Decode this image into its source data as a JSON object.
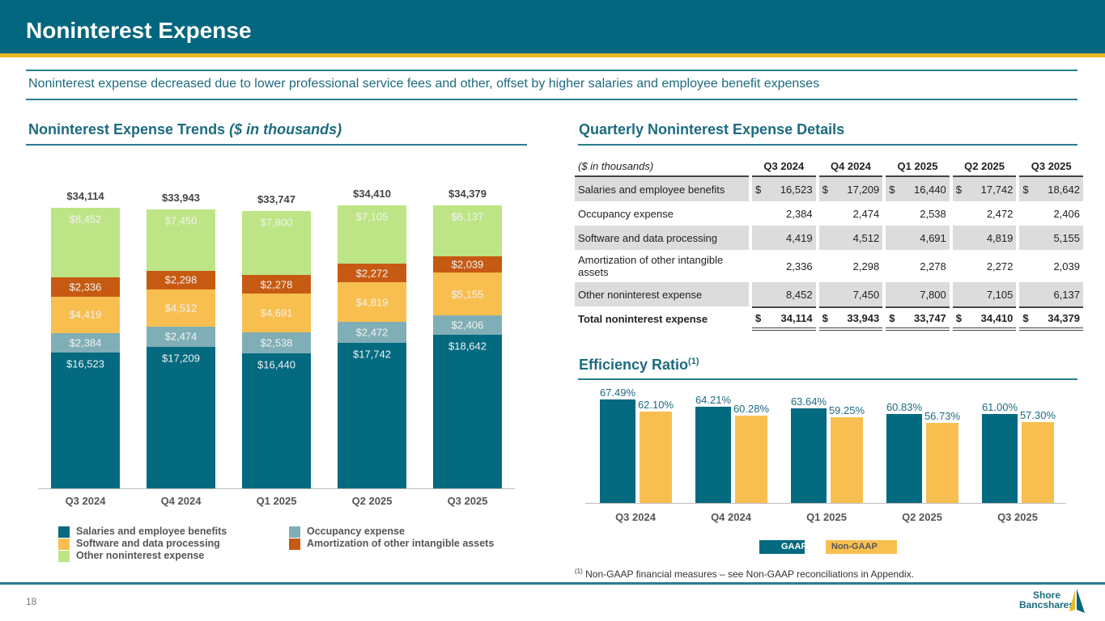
{
  "title": "Noninterest Expense",
  "subtitle": "Noninterest expense decreased due to lower professional service fees and other, offset by higher salaries and employee benefit expenses",
  "left_heading": "Noninterest Expense Trends",
  "left_heading_unit": "($ in thousands)",
  "right_heading": "Quarterly Noninterest Expense Details",
  "efficiency_heading": "Efficiency Ratio",
  "efficiency_sup": "(1)",
  "footnote_sup": "(1)",
  "footnote": "Non-GAAP financial measures – see Non-GAAP reconciliations in Appendix.",
  "page_number": "18",
  "logo_text": "Shore Bancshares",
  "colors": {
    "header": "#02667e",
    "stripe": "#e9b824",
    "salaries": "#046a80",
    "occupancy": "#80aeb6",
    "software": "#f8bf50",
    "amortization": "#c75a12",
    "other": "#bde585",
    "gaap": "#046a80",
    "nongaap": "#f8bf50"
  },
  "table": {
    "unit_label": "($ in thousands)",
    "columns": [
      "Q3 2024",
      "Q4 2024",
      "Q1 2025",
      "Q2 2025",
      "Q3 2025"
    ],
    "rows": [
      {
        "label": "Salaries and employee benefits",
        "values": [
          "16,523",
          "17,209",
          "16,440",
          "17,742",
          "18,642"
        ],
        "dollar": true
      },
      {
        "label": "Occupancy expense",
        "values": [
          "2,384",
          "2,474",
          "2,538",
          "2,472",
          "2,406"
        ]
      },
      {
        "label": "Software and data processing",
        "values": [
          "4,419",
          "4,512",
          "4,691",
          "4,819",
          "5,155"
        ]
      },
      {
        "label": "Amortization of other intangible assets",
        "values": [
          "2,336",
          "2,298",
          "2,278",
          "2,272",
          "2,039"
        ]
      },
      {
        "label": "Other noninterest expense",
        "values": [
          "8,452",
          "7,450",
          "7,800",
          "7,105",
          "6,137"
        ]
      }
    ],
    "total": {
      "label": "Total noninterest expense",
      "values": [
        "34,114",
        "33,943",
        "33,747",
        "34,410",
        "34,379"
      ]
    },
    "currency": "$"
  },
  "chart_data": [
    {
      "type": "bar",
      "stacked": true,
      "title": "Noninterest Expense Trends ($ in thousands)",
      "categories": [
        "Q3 2024",
        "Q4 2024",
        "Q1 2025",
        "Q2 2025",
        "Q3 2025"
      ],
      "series": [
        {
          "name": "Salaries and employee benefits",
          "key": "salaries",
          "values": [
            16523,
            17209,
            16440,
            17742,
            18642
          ],
          "labels": [
            "$16,523",
            "$17,209",
            "$16,440",
            "$17,742",
            "$18,642"
          ]
        },
        {
          "name": "Occupancy expense",
          "key": "occupancy",
          "values": [
            2384,
            2474,
            2538,
            2472,
            2406
          ],
          "labels": [
            "$2,384",
            "$2,474",
            "$2,538",
            "$2,472",
            "$2,406"
          ]
        },
        {
          "name": "Software and data processing",
          "key": "software",
          "values": [
            4419,
            4512,
            4691,
            4819,
            5155
          ],
          "labels": [
            "$4,419",
            "$4,512",
            "$4,691",
            "$4,819",
            "$5,155"
          ]
        },
        {
          "name": "Amortization of other intangible assets",
          "key": "amortization",
          "values": [
            2336,
            2298,
            2278,
            2272,
            2039
          ],
          "labels": [
            "$2,336",
            "$2,298",
            "$2,278",
            "$2,272",
            "$2,039"
          ]
        },
        {
          "name": "Other noninterest expense",
          "key": "other",
          "values": [
            8452,
            7450,
            7800,
            7105,
            6137
          ],
          "labels": [
            "$8,452",
            "$7,450",
            "$7,800",
            "$7,105",
            "$6,137"
          ]
        }
      ],
      "totals": [
        34114,
        33943,
        33747,
        34410,
        34379
      ],
      "total_labels": [
        "$34,114",
        "$33,943",
        "$33,747",
        "$34,410",
        "$34,379"
      ],
      "legend_order": [
        "salaries",
        "occupancy",
        "software",
        "amortization",
        "other"
      ],
      "ylim": [
        0,
        37750
      ],
      "grid": false,
      "legend": "bottom"
    },
    {
      "type": "bar",
      "title": "Efficiency Ratio",
      "categories": [
        "Q3 2024",
        "Q4 2024",
        "Q1 2025",
        "Q2 2025",
        "Q3 2025"
      ],
      "series": [
        {
          "name": "GAAP",
          "key": "gaap",
          "values": [
            67.49,
            64.21,
            63.64,
            60.83,
            61.0
          ],
          "labels": [
            "67.49%",
            "64.21%",
            "63.64%",
            "60.83%",
            "61.00%"
          ]
        },
        {
          "name": "Non-GAAP",
          "key": "nongaap",
          "values": [
            62.1,
            60.28,
            59.25,
            56.73,
            57.3
          ],
          "labels": [
            "62.10%",
            "60.28%",
            "59.25%",
            "56.73%",
            "57.30%"
          ]
        }
      ],
      "ylim": [
        20,
        75
      ],
      "grid": false,
      "legend": "bottom"
    }
  ]
}
